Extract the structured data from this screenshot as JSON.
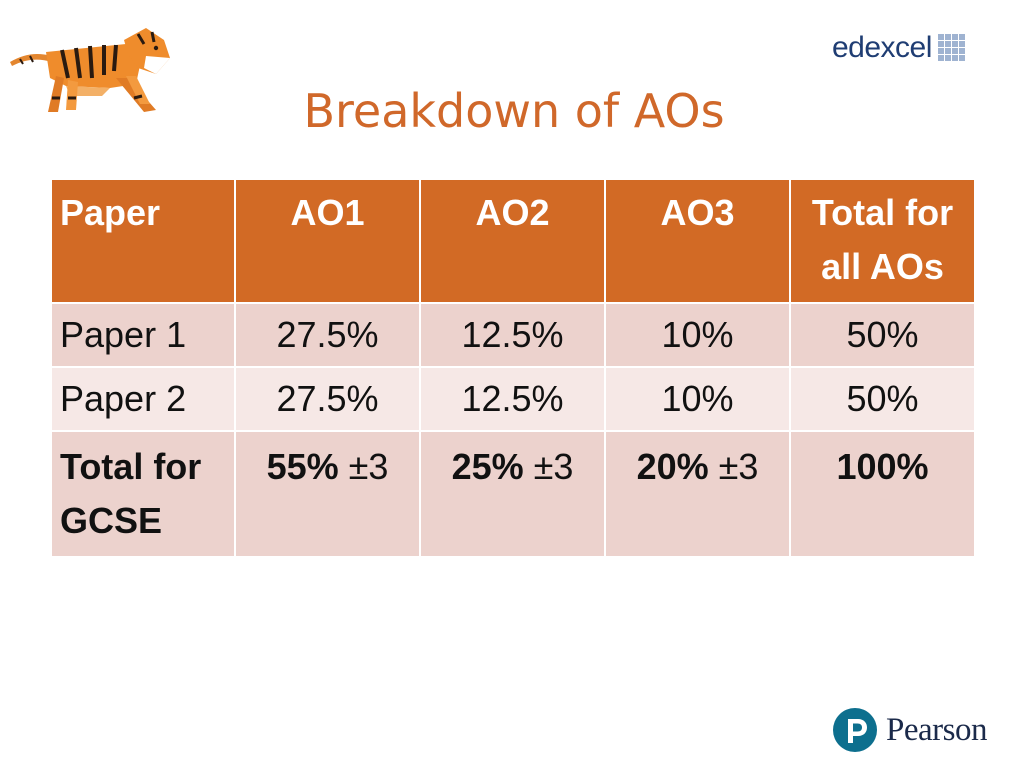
{
  "brand": {
    "edexcel": "edexcel",
    "pearson": "Pearson",
    "edexcel_color": "#1f3d73",
    "accent_color": "#d26a25"
  },
  "title": "Breakdown of AOs",
  "table": {
    "headers": [
      "Paper",
      "AO1",
      "AO2",
      "AO3",
      "Total for all AOs"
    ],
    "rows": [
      {
        "paper": "Paper 1",
        "ao1": "27.5%",
        "ao2": "12.5%",
        "ao3": "10%",
        "total": "50%"
      },
      {
        "paper": "Paper 2",
        "ao1": "27.5%",
        "ao2": "12.5%",
        "ao3": "10%",
        "total": "50%"
      }
    ],
    "total_row": {
      "label": "Total for GCSE",
      "ao1_value": "55%",
      "ao1_tolerance": "±3",
      "ao2_value": "25%",
      "ao2_tolerance": "±3",
      "ao3_value": "20%",
      "ao3_tolerance": "±3",
      "total": "100%"
    }
  },
  "icons": {
    "mascot": "tiger-illustration",
    "edexcel_mark": "grid-squares-icon",
    "pearson_mark": "pearson-p-icon"
  }
}
